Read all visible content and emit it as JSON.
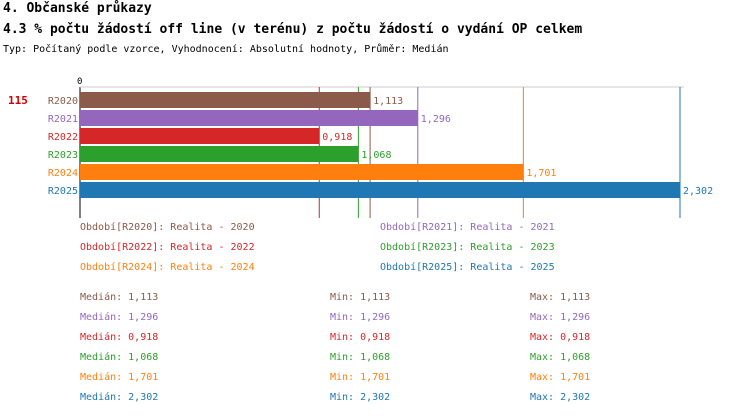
{
  "header": {
    "section_title": "4. Občanské průkazy",
    "chart_title": "4.3 % počtu žádostí off line (v terénu) z počtu žádostí o vydání OP celkem",
    "subtitle": "Typ: Počítaný podle vzorce, Vyhodnocení: Absolutní hodnoty, Průměr: Medián"
  },
  "chart_data": {
    "type": "bar",
    "orientation": "horizontal",
    "count_label": "115",
    "axis_zero_label": "0",
    "xlim": [
      0,
      2.302
    ],
    "categories": [
      "R2020",
      "R2021",
      "R2022",
      "R2023",
      "R2024",
      "R2025"
    ],
    "values": [
      1.113,
      1.296,
      0.918,
      1.068,
      1.701,
      2.302
    ],
    "value_labels": [
      "1,113",
      "1,296",
      "0,918",
      "1,068",
      "1,701",
      "2,302"
    ],
    "colors": [
      "#8b5a4a",
      "#9467bd",
      "#d62728",
      "#2ca02c",
      "#ff7f0e",
      "#1f77b4"
    ],
    "reference_lines": true
  },
  "legend": [
    {
      "text": "Období[R2020]: Realita - 2020",
      "color": "#8b5a4a"
    },
    {
      "text": "Období[R2021]: Realita - 2021",
      "color": "#9467bd"
    },
    {
      "text": "Období[R2022]: Realita - 2022",
      "color": "#d62728"
    },
    {
      "text": "Období[R2023]: Realita - 2023",
      "color": "#2ca02c"
    },
    {
      "text": "Období[R2024]: Realita - 2024",
      "color": "#ff7f0e"
    },
    {
      "text": "Období[R2025]: Realita - 2025",
      "color": "#1f77b4"
    }
  ],
  "stats": [
    {
      "median": "Medián: 1,113",
      "min": "Min: 1,113",
      "max": "Max: 1,113",
      "color": "#8b5a4a"
    },
    {
      "median": "Medián: 1,296",
      "min": "Min: 1,296",
      "max": "Max: 1,296",
      "color": "#9467bd"
    },
    {
      "median": "Medián: 0,918",
      "min": "Min: 0,918",
      "max": "Max: 0,918",
      "color": "#d62728"
    },
    {
      "median": "Medián: 1,068",
      "min": "Min: 1,068",
      "max": "Max: 1,068",
      "color": "#2ca02c"
    },
    {
      "median": "Medián: 1,701",
      "min": "Min: 1,701",
      "max": "Max: 1,701",
      "color": "#ff7f0e"
    },
    {
      "median": "Medián: 2,302",
      "min": "Min: 2,302",
      "max": "Max: 2,302",
      "color": "#1f77b4"
    }
  ]
}
